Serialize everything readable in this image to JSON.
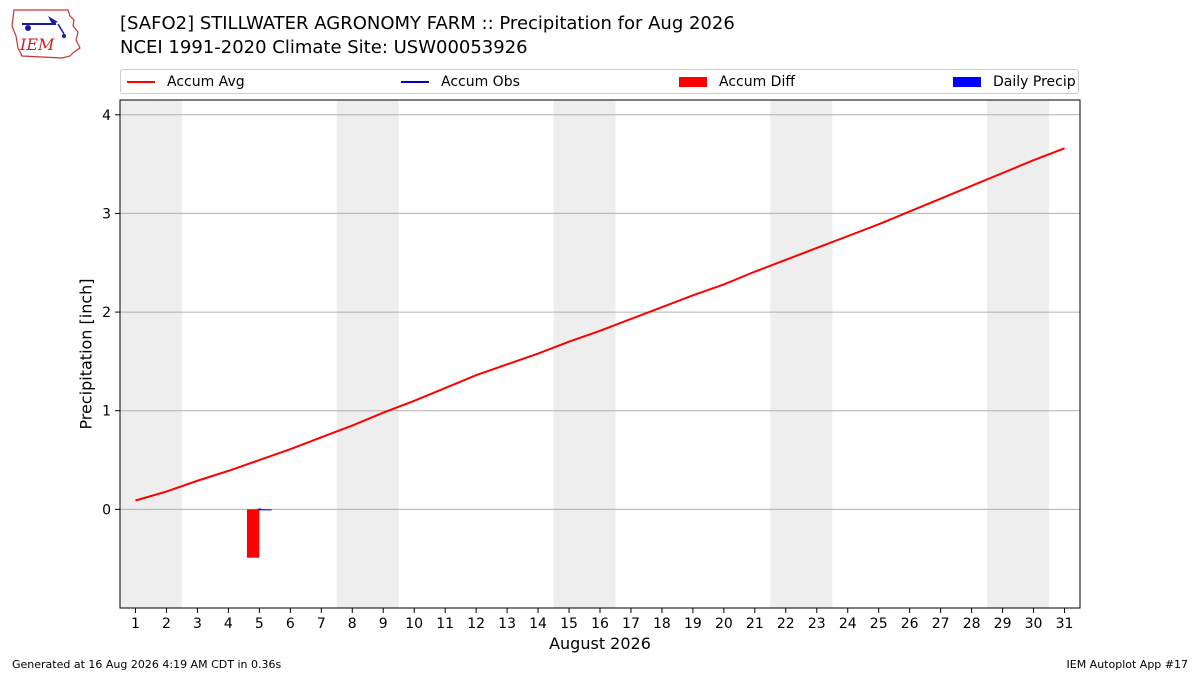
{
  "header": {
    "title_line1": "[SAFO2] STILLWATER AGRONOMY FARM :: Precipitation for Aug 2026",
    "title_line2": "NCEI 1991-2020 Climate Site: USW00053926",
    "logo_text": "IEM"
  },
  "legend": [
    {
      "label": "Accum Avg",
      "kind": "line",
      "color": "#ff0000"
    },
    {
      "label": "Accum Obs",
      "kind": "line",
      "color": "#0000cc"
    },
    {
      "label": "Accum Diff",
      "kind": "box",
      "color": "#ff0000"
    },
    {
      "label": "Daily Precip",
      "kind": "box",
      "color": "#0000ff"
    }
  ],
  "footer": {
    "generated": "Generated at 16 Aug 2026 4:19 AM CDT in 0.36s",
    "app": "IEM Autoplot App #17"
  },
  "chart_data": {
    "type": "line",
    "xlabel": "August 2026",
    "ylabel": "Precipitation [inch]",
    "xlim": [
      0.5,
      31.5
    ],
    "ylim": [
      -1,
      4.15
    ],
    "x_ticks": [
      1,
      2,
      3,
      4,
      5,
      6,
      7,
      8,
      9,
      10,
      11,
      12,
      13,
      14,
      15,
      16,
      17,
      18,
      19,
      20,
      21,
      22,
      23,
      24,
      25,
      26,
      27,
      28,
      29,
      30,
      31
    ],
    "y_ticks": [
      0,
      1,
      2,
      3,
      4
    ],
    "grid": "horizontal",
    "weekend_shading": [
      [
        0.5,
        2.5
      ],
      [
        7.5,
        9.5
      ],
      [
        14.5,
        16.5
      ],
      [
        21.5,
        23.5
      ],
      [
        28.5,
        30.5
      ]
    ],
    "shade_color": "#eeeeee",
    "series": [
      {
        "name": "Accum Avg",
        "color": "#ff0000",
        "x": [
          1,
          2,
          3,
          4,
          5,
          6,
          7,
          8,
          9,
          10,
          11,
          12,
          13,
          14,
          15,
          16,
          17,
          18,
          19,
          20,
          21,
          22,
          23,
          24,
          25,
          26,
          27,
          28,
          29,
          30,
          31
        ],
        "values": [
          0.09,
          0.18,
          0.29,
          0.39,
          0.5,
          0.61,
          0.73,
          0.85,
          0.98,
          1.1,
          1.23,
          1.36,
          1.47,
          1.58,
          1.7,
          1.81,
          1.93,
          2.05,
          2.17,
          2.28,
          2.41,
          2.53,
          2.65,
          2.77,
          2.89,
          3.02,
          3.15,
          3.28,
          3.41,
          3.54,
          3.66
        ]
      },
      {
        "name": "Accum Obs",
        "color": "#0000cc",
        "x": [
          5
        ],
        "values": [
          0.0
        ]
      },
      {
        "name": "Accum Diff",
        "type": "bar",
        "color": "#ff0000",
        "x": [
          4.8
        ],
        "values": [
          -0.49
        ]
      },
      {
        "name": "Daily Precip",
        "type": "bar",
        "color": "#0000ff",
        "x": [
          5.2
        ],
        "values": [
          0.0
        ]
      }
    ]
  }
}
